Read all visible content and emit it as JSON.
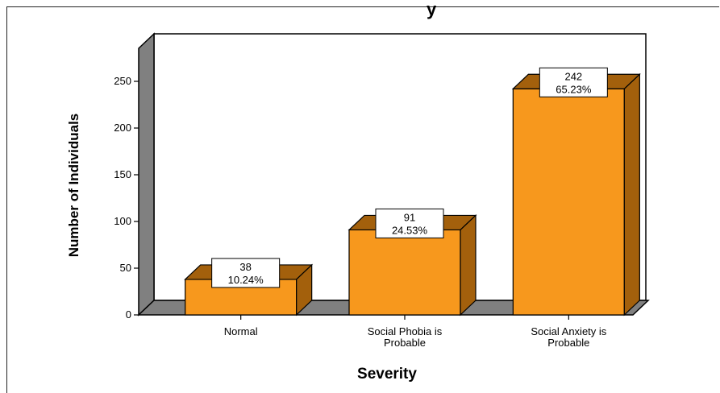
{
  "chart_data": {
    "type": "bar",
    "title_fragment": "y",
    "categories": [
      "Normal",
      "Social Phobia is Probable",
      "Social Anxiety is Probable"
    ],
    "category_lines": [
      [
        "Normal"
      ],
      [
        "Social Phobia is",
        "Probable"
      ],
      [
        "Social Anxiety is",
        "Probable"
      ]
    ],
    "values": [
      38,
      91,
      242
    ],
    "percent_labels": [
      "10.24%",
      "24.53%",
      "65.23%"
    ],
    "count_labels": [
      "38",
      "91",
      "242"
    ],
    "xlabel": "Severity",
    "ylabel": "Number of Individuals",
    "ylim": [
      0,
      280
    ],
    "yticks": [
      0,
      50,
      100,
      150,
      200,
      250
    ],
    "grid": false,
    "legend": "none",
    "colors": {
      "bar_front": "#f7981d",
      "bar_top": "#a3600c",
      "bar_side": "#a3600c",
      "back_wall": "#ffffff",
      "side_wall": "#808080",
      "floor": "#808080"
    }
  }
}
